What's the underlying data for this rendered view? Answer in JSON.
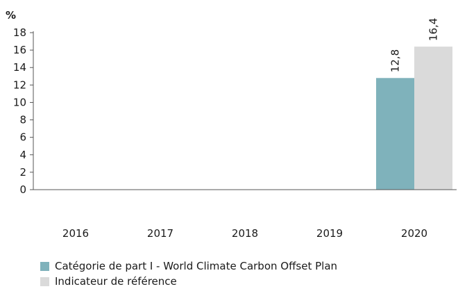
{
  "chart_data": {
    "type": "bar",
    "unit_label": "%",
    "categories": [
      "2016",
      "2017",
      "2018",
      "2019",
      "2020"
    ],
    "series": [
      {
        "name": "Catégorie de part I - World Climate Carbon Offset Plan",
        "color": "#7fb2bb",
        "values": [
          null,
          null,
          null,
          null,
          12.8
        ],
        "labels": [
          "",
          "",
          "",
          "",
          "12,8"
        ]
      },
      {
        "name": "Indicateur de référence",
        "color": "#dadada",
        "values": [
          null,
          null,
          null,
          null,
          16.4
        ],
        "labels": [
          "",
          "",
          "",
          "",
          "16,4"
        ]
      }
    ],
    "ylim": [
      0,
      18
    ],
    "yticks": [
      "0",
      "2",
      "4",
      "6",
      "8",
      "10",
      "12",
      "14",
      "16",
      "18"
    ],
    "grid": false,
    "legend_position": "bottom-left"
  }
}
